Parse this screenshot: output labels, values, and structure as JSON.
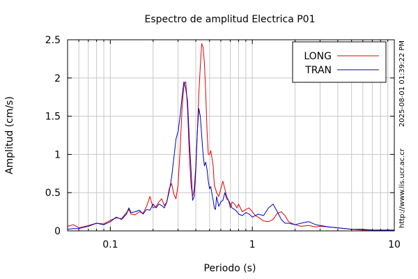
{
  "chart_data": {
    "type": "line",
    "title": "Espectro de amplitud Electrica P01",
    "xlabel": "Periodo (s)",
    "ylabel": "Amplitud (cm/s)",
    "xscale": "log",
    "xlim": [
      0.05,
      10
    ],
    "ylim": [
      0,
      2.5
    ],
    "xticks": [
      0.1,
      1,
      10
    ],
    "xtick_labels": [
      "0.1",
      "1",
      "10"
    ],
    "yticks": [
      0,
      0.5,
      1,
      1.5,
      2,
      2.5
    ],
    "ytick_labels": [
      "0",
      "0.5",
      "1",
      "1.5",
      "2",
      "2.5"
    ],
    "grid": true,
    "legend_position": "top-right",
    "side_text": {
      "timestamp": "2025-08-01 01:39:22 PM",
      "url": "http://www.lis.ucr.ac.cr"
    },
    "series": [
      {
        "name": "LONG",
        "color": "#e00000",
        "x": [
          0.05,
          0.055,
          0.06,
          0.07,
          0.08,
          0.09,
          0.1,
          0.11,
          0.12,
          0.13,
          0.135,
          0.14,
          0.15,
          0.16,
          0.17,
          0.18,
          0.19,
          0.2,
          0.21,
          0.22,
          0.23,
          0.24,
          0.25,
          0.26,
          0.27,
          0.28,
          0.29,
          0.3,
          0.31,
          0.32,
          0.33,
          0.34,
          0.35,
          0.36,
          0.37,
          0.38,
          0.39,
          0.4,
          0.41,
          0.42,
          0.43,
          0.44,
          0.45,
          0.46,
          0.47,
          0.48,
          0.49,
          0.5,
          0.51,
          0.52,
          0.53,
          0.54,
          0.55,
          0.56,
          0.58,
          0.6,
          0.62,
          0.64,
          0.66,
          0.68,
          0.7,
          0.72,
          0.75,
          0.78,
          0.8,
          0.85,
          0.9,
          0.95,
          1.0,
          1.05,
          1.1,
          1.2,
          1.3,
          1.4,
          1.5,
          1.6,
          1.7,
          1.8,
          2.0,
          2.2,
          2.5,
          2.8,
          3.0,
          3.5,
          4.0,
          4.5,
          5.0,
          6.0,
          7.0,
          8.0,
          10.0
        ],
        "y": [
          0.06,
          0.08,
          0.04,
          0.07,
          0.1,
          0.09,
          0.14,
          0.17,
          0.16,
          0.24,
          0.28,
          0.22,
          0.21,
          0.25,
          0.23,
          0.32,
          0.45,
          0.3,
          0.32,
          0.38,
          0.42,
          0.33,
          0.38,
          0.55,
          0.62,
          0.48,
          0.42,
          0.6,
          1.05,
          1.6,
          1.92,
          1.95,
          1.6,
          1.0,
          0.6,
          0.45,
          0.55,
          0.85,
          1.3,
          1.8,
          2.15,
          2.45,
          2.4,
          2.2,
          1.8,
          1.3,
          1.0,
          1.0,
          1.05,
          0.95,
          0.85,
          0.6,
          0.55,
          0.5,
          0.45,
          0.55,
          0.65,
          0.55,
          0.45,
          0.4,
          0.3,
          0.38,
          0.35,
          0.3,
          0.35,
          0.25,
          0.28,
          0.3,
          0.25,
          0.2,
          0.18,
          0.13,
          0.12,
          0.15,
          0.23,
          0.25,
          0.2,
          0.12,
          0.08,
          0.06,
          0.07,
          0.05,
          0.06,
          0.05,
          0.04,
          0.03,
          0.02,
          0.01,
          0.01,
          0.01,
          0.01
        ]
      },
      {
        "name": "TRAN",
        "color": "#0000c0",
        "x": [
          0.05,
          0.055,
          0.06,
          0.07,
          0.08,
          0.09,
          0.1,
          0.11,
          0.12,
          0.13,
          0.135,
          0.14,
          0.15,
          0.16,
          0.17,
          0.18,
          0.19,
          0.2,
          0.21,
          0.22,
          0.23,
          0.24,
          0.25,
          0.26,
          0.27,
          0.28,
          0.29,
          0.3,
          0.31,
          0.32,
          0.33,
          0.34,
          0.35,
          0.36,
          0.37,
          0.38,
          0.39,
          0.4,
          0.41,
          0.42,
          0.43,
          0.44,
          0.45,
          0.46,
          0.47,
          0.48,
          0.49,
          0.5,
          0.51,
          0.52,
          0.53,
          0.54,
          0.55,
          0.56,
          0.58,
          0.6,
          0.62,
          0.64,
          0.66,
          0.68,
          0.7,
          0.72,
          0.75,
          0.78,
          0.8,
          0.85,
          0.9,
          0.95,
          1.0,
          1.05,
          1.1,
          1.2,
          1.3,
          1.4,
          1.5,
          1.6,
          1.7,
          1.8,
          2.0,
          2.2,
          2.5,
          2.8,
          3.0,
          3.5,
          4.0,
          4.5,
          5.0,
          6.0,
          7.0,
          8.0,
          10.0
        ],
        "y": [
          0.02,
          0.03,
          0.03,
          0.06,
          0.1,
          0.08,
          0.12,
          0.18,
          0.15,
          0.22,
          0.3,
          0.24,
          0.25,
          0.27,
          0.22,
          0.28,
          0.27,
          0.35,
          0.3,
          0.35,
          0.33,
          0.3,
          0.38,
          0.52,
          0.7,
          0.95,
          1.2,
          1.3,
          1.5,
          1.75,
          1.95,
          1.85,
          1.7,
          1.2,
          0.8,
          0.4,
          0.45,
          0.8,
          1.3,
          1.6,
          1.5,
          1.25,
          1.0,
          0.85,
          0.9,
          0.8,
          0.65,
          0.55,
          0.58,
          0.48,
          0.4,
          0.3,
          0.28,
          0.45,
          0.32,
          0.38,
          0.4,
          0.5,
          0.42,
          0.4,
          0.35,
          0.3,
          0.28,
          0.25,
          0.22,
          0.2,
          0.24,
          0.22,
          0.18,
          0.2,
          0.22,
          0.2,
          0.3,
          0.35,
          0.25,
          0.15,
          0.1,
          0.1,
          0.08,
          0.1,
          0.12,
          0.08,
          0.07,
          0.05,
          0.04,
          0.03,
          0.02,
          0.02,
          0.01,
          0.01,
          0.01
        ]
      }
    ]
  }
}
